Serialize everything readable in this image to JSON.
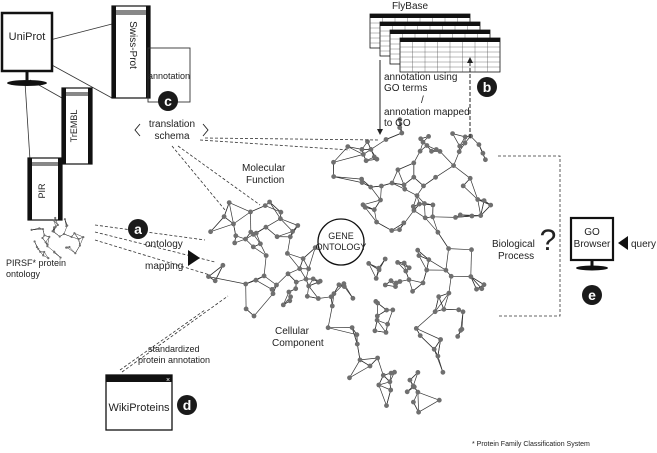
{
  "servers": {
    "uniprot": "UniProt",
    "swissprot": "Swiss-Prot",
    "trembl": "TrEMBL",
    "pir": "PIR"
  },
  "flybase": {
    "title": "FlyBase",
    "annotation_line1": "annotation using",
    "annotation_line2": "GO terms",
    "annotation_sep": "/",
    "annotation_line3": "annotation mapped",
    "annotation_line4": "to GO"
  },
  "annotation_label": "annotation",
  "translation": {
    "line1": "translation",
    "line2": "schema"
  },
  "ontology_mapping": {
    "line1": "ontology",
    "line2": "mapping"
  },
  "pirsf": {
    "line1": "PIRSF* protein",
    "line2": "ontology"
  },
  "gene_ontology": {
    "line1": "GENE",
    "line2": "ONTOLOGY"
  },
  "regions": {
    "molecular": {
      "line1": "Molecular",
      "line2": "Function"
    },
    "biological": {
      "line1": "Biological",
      "line2": "Process"
    },
    "cellular": {
      "line1": "Cellular",
      "line2": "Component"
    }
  },
  "standardized": {
    "line1": "standardized",
    "line2": "protein annotation"
  },
  "wikiproteins": {
    "label": "WikiProteins",
    "close_glyph": "×"
  },
  "go_browser": {
    "line1": "GO",
    "line2": "Browser"
  },
  "query_label": "query",
  "question_mark": "?",
  "badges": {
    "a": "a",
    "b": "b",
    "c": "c",
    "d": "d",
    "e": "e"
  },
  "footnote": "* Protein Family Classification System",
  "colors": {
    "badge": "#1a1a1a",
    "node": "#6f6f6f",
    "edge": "#333333",
    "server_stripe": "#888888"
  }
}
